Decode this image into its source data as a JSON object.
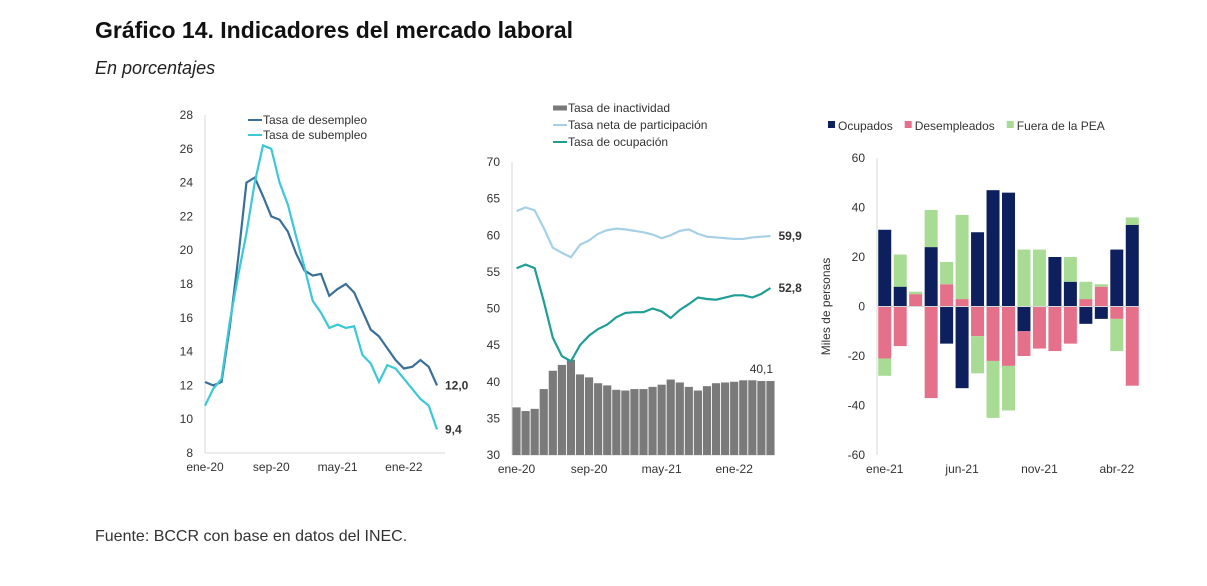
{
  "title": "Gráfico 14. Indicadores del mercado laboral",
  "subtitle": "En porcentajes",
  "source": "Fuente: BCCR con base en datos del INEC.",
  "chart_data": [
    {
      "type": "line",
      "title": "",
      "xlabel": "",
      "ylabel": "",
      "ylim": [
        8,
        28
      ],
      "yticks": [
        8,
        10,
        12,
        14,
        16,
        18,
        20,
        22,
        24,
        26,
        28
      ],
      "xtick_labels": [
        "ene-20",
        "sep-20",
        "may-21",
        "ene-22"
      ],
      "xtick_index": [
        0,
        8,
        16,
        24
      ],
      "legend": "top",
      "series": [
        {
          "name": "Tasa de desempleo",
          "color": "#3a6f98",
          "end_label": "12,0",
          "values": [
            12.2,
            12.0,
            12.2,
            15.5,
            19.5,
            24.0,
            24.3,
            23.2,
            22.0,
            21.8,
            21.1,
            19.8,
            18.8,
            18.5,
            18.6,
            17.3,
            17.7,
            18.0,
            17.5,
            16.4,
            15.3,
            14.9,
            14.2,
            13.5,
            13.0,
            13.1,
            13.5,
            13.1,
            12.0
          ]
        },
        {
          "name": "Tasa de subempleo",
          "color": "#3cc8d4",
          "end_label": "9,4",
          "values": [
            10.8,
            11.8,
            12.4,
            15.8,
            18.5,
            21.0,
            24.0,
            26.2,
            26.0,
            24.0,
            22.7,
            20.8,
            19.0,
            17.0,
            16.3,
            15.4,
            15.6,
            15.4,
            15.5,
            13.8,
            13.3,
            12.2,
            13.2,
            13.0,
            12.4,
            11.8,
            11.2,
            10.8,
            9.4
          ]
        }
      ]
    },
    {
      "type": "bar+line",
      "title": "",
      "xlabel": "",
      "ylabel": "",
      "ylim": [
        30,
        70
      ],
      "yticks": [
        30,
        35,
        40,
        45,
        50,
        55,
        60,
        65,
        70
      ],
      "xtick_labels": [
        "ene-20",
        "sep-20",
        "may-21",
        "ene-22"
      ],
      "xtick_index": [
        0,
        8,
        16,
        24
      ],
      "legend": "top",
      "series": [
        {
          "name": "Tasa de inactividad",
          "kind": "bar",
          "color": "#7a7a7a",
          "end_label": "40,1",
          "values": [
            36.5,
            36.0,
            36.3,
            39.0,
            41.5,
            42.3,
            43.0,
            41.0,
            40.6,
            39.8,
            39.5,
            38.9,
            38.8,
            39.0,
            39.0,
            39.3,
            39.6,
            40.3,
            39.9,
            39.3,
            38.8,
            39.4,
            39.8,
            39.9,
            40.0,
            40.2,
            40.2,
            40.1,
            40.1
          ]
        },
        {
          "name": "Tasa neta de participación",
          "kind": "line",
          "color": "#a6cfe8",
          "end_label": "59,9",
          "values": [
            63.3,
            63.8,
            63.4,
            61.0,
            58.3,
            57.6,
            57.0,
            58.7,
            59.3,
            60.2,
            60.7,
            60.9,
            60.8,
            60.6,
            60.4,
            60.1,
            59.6,
            60.0,
            60.6,
            60.8,
            60.2,
            59.8,
            59.7,
            59.6,
            59.5,
            59.5,
            59.7,
            59.8,
            59.9
          ]
        },
        {
          "name": "Tasa de ocupación",
          "kind": "line",
          "color": "#1f9e96",
          "end_label": "52,8",
          "values": [
            55.5,
            56.0,
            55.5,
            51.0,
            46.0,
            43.5,
            42.8,
            45.0,
            46.3,
            47.2,
            47.8,
            48.8,
            49.4,
            49.5,
            49.5,
            50.0,
            49.6,
            48.7,
            49.8,
            50.6,
            51.5,
            51.3,
            51.2,
            51.5,
            51.8,
            51.8,
            51.5,
            52.0,
            52.8
          ]
        }
      ]
    },
    {
      "type": "bar",
      "stacked": true,
      "title": "",
      "xlabel": "",
      "ylabel": "Miles de personas",
      "ylim": [
        -60,
        60
      ],
      "yticks": [
        -60,
        -40,
        -20,
        0,
        20,
        40,
        60
      ],
      "xtick_labels": [
        "ene-21",
        "jun-21",
        "nov-21",
        "abr-22"
      ],
      "xtick_index": [
        0,
        5,
        10,
        15
      ],
      "legend": "top",
      "categories": [
        "ene-21",
        "feb-21",
        "mar-21",
        "abr-21",
        "may-21",
        "jun-21",
        "jul-21",
        "ago-21",
        "sep-21",
        "oct-21",
        "nov-21",
        "dic-21",
        "ene-22",
        "feb-22",
        "mar-22",
        "abr-22",
        "may-22"
      ],
      "series": [
        {
          "name": "Ocupados",
          "color": "#0d1f5c",
          "values": [
            31,
            8,
            0,
            24,
            -15,
            -33,
            30,
            47,
            46,
            -10,
            0,
            20,
            10,
            -7,
            -5,
            23,
            33
          ]
        },
        {
          "name": "Desempleados",
          "color": "#e5708a",
          "values": [
            -21,
            -16,
            5,
            -37,
            9,
            3,
            -12,
            -22,
            -24,
            -10,
            -17,
            -18,
            -15,
            3,
            8,
            -5,
            -32
          ]
        },
        {
          "name": "Fuera de la PEA",
          "color": "#a8dc94",
          "values": [
            -7,
            13,
            1,
            15,
            9,
            34,
            -15,
            -23,
            -18,
            23,
            23,
            0,
            10,
            7,
            1,
            -13,
            3
          ]
        }
      ]
    }
  ]
}
